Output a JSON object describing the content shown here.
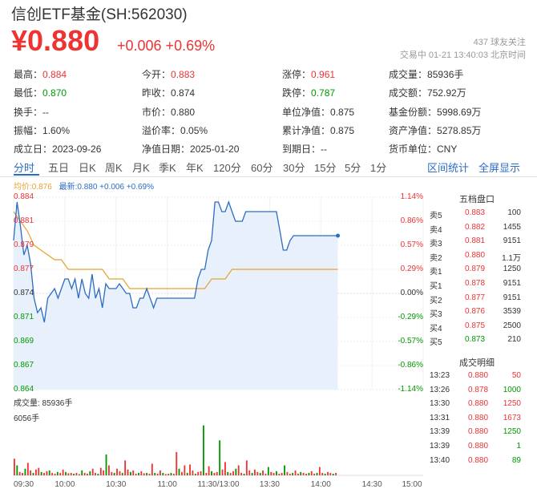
{
  "header": {
    "title": "信创ETF基金(SH:562030)",
    "price": "¥0.880",
    "change": "+0.006 +0.69%",
    "followers": "437 球友关注",
    "status": "交易中 01-21 13:40:03 北京时间"
  },
  "quote": [
    [
      {
        "label": "最高：",
        "value": "0.884",
        "color": "red"
      },
      {
        "label": "今开：",
        "value": "0.883",
        "color": "red"
      },
      {
        "label": "涨停：",
        "value": "0.961",
        "color": "red"
      },
      {
        "label": "成交量：",
        "value": "85936手",
        "color": "dark"
      }
    ],
    [
      {
        "label": "最低：",
        "value": "0.870",
        "color": "green"
      },
      {
        "label": "昨收：",
        "value": "0.874",
        "color": "dark"
      },
      {
        "label": "跌停：",
        "value": "0.787",
        "color": "green"
      },
      {
        "label": "成交额：",
        "value": "752.92万",
        "color": "dark"
      }
    ],
    [
      {
        "label": "换手：",
        "value": "--",
        "color": "dark"
      },
      {
        "label": "市价：",
        "value": "0.880",
        "color": "dark"
      },
      {
        "label": "单位净值：",
        "value": "0.875",
        "color": "dark"
      },
      {
        "label": "基金份额：",
        "value": "5998.69万",
        "color": "dark"
      }
    ],
    [
      {
        "label": "振幅：",
        "value": "1.60%",
        "color": "dark"
      },
      {
        "label": "溢价率：",
        "value": "0.05%",
        "color": "dark"
      },
      {
        "label": "累计净值：",
        "value": "0.875",
        "color": "dark"
      },
      {
        "label": "资产净值：",
        "value": "5278.85万",
        "color": "dark"
      }
    ],
    [
      {
        "label": "成立日：",
        "value": "2023-09-26",
        "color": "dark"
      },
      {
        "label": "净值日期：",
        "value": "2025-01-20",
        "color": "dark"
      },
      {
        "label": "到期日：",
        "value": "--",
        "color": "dark"
      },
      {
        "label": "货币单位：",
        "value": "CNY",
        "color": "dark"
      }
    ]
  ],
  "tabs": [
    "分时",
    "五日",
    "日K",
    "周K",
    "月K",
    "季K",
    "年K",
    "120分",
    "60分",
    "30分",
    "15分",
    "5分",
    "1分"
  ],
  "tab_right": [
    "区间统计",
    "全屏显示"
  ],
  "legend": {
    "avg": "均价:0.876",
    "latest": "最新:0.880 +0.006 +0.69%"
  },
  "colors": {
    "up": "#e33",
    "down": "#090",
    "price_line": "#2b6cc4",
    "avg_line": "#e8a030",
    "accent": "#2b6cc4"
  },
  "chart_data": {
    "type": "line",
    "title": "",
    "yticks": [
      "0.884",
      "0.881",
      "0.879",
      "0.877",
      "0.874",
      "0.871",
      "0.869",
      "0.867",
      "0.864"
    ],
    "pct_ticks": [
      "1.14%",
      "0.86%",
      "0.57%",
      "0.29%",
      "0.00%",
      "-0.29%",
      "-0.57%",
      "-0.86%",
      "-1.14%"
    ],
    "ylim": [
      0.864,
      0.884
    ],
    "prev_close": 0.874,
    "xticks": [
      "09:30",
      "10:00",
      "10:30",
      "11:00",
      "11:30/13:00",
      "13:30",
      "14:00",
      "14:30",
      "15:00"
    ],
    "xlim": [
      0,
      240
    ],
    "series": [
      {
        "x": [
          0,
          2,
          4,
          6,
          8,
          10,
          12,
          14,
          16,
          18,
          20,
          22,
          24,
          26,
          28,
          30,
          32,
          34,
          36,
          38,
          40,
          42,
          44,
          46,
          48,
          50,
          52,
          54,
          56,
          58,
          60,
          62,
          64,
          66,
          68,
          70,
          72,
          74,
          76,
          78,
          80,
          82,
          84,
          86,
          88,
          90,
          92,
          94,
          96,
          98,
          100,
          102,
          104,
          106,
          108,
          110,
          112,
          114,
          116,
          118,
          120,
          122,
          124,
          126,
          128,
          130,
          132,
          134,
          136,
          138,
          140,
          142,
          144,
          146,
          148,
          150,
          152,
          154,
          156,
          158,
          160,
          162,
          164,
          166,
          168,
          170,
          172,
          174,
          176,
          178,
          180,
          182,
          184,
          186,
          188,
          190
        ],
        "values": [
          0.8795,
          0.8835,
          0.881,
          0.878,
          0.879,
          0.877,
          0.8735,
          0.872,
          0.8725,
          0.871,
          0.8735,
          0.874,
          0.8745,
          0.8735,
          0.8745,
          0.8755,
          0.8755,
          0.8745,
          0.8755,
          0.8735,
          0.8755,
          0.874,
          0.8735,
          0.876,
          0.8735,
          0.8745,
          0.8725,
          0.875,
          0.8745,
          0.8745,
          0.8745,
          0.875,
          0.8745,
          0.874,
          0.874,
          0.8725,
          0.8725,
          0.8735,
          0.8735,
          0.8745,
          0.8735,
          0.8725,
          0.8735,
          0.8735,
          0.8735,
          0.8735,
          0.8735,
          0.8735,
          0.8735,
          0.8735,
          0.8735,
          0.8735,
          0.8735,
          0.8735,
          0.8755,
          0.8765,
          0.8765,
          0.8785,
          0.8795,
          0.8835,
          0.8835,
          0.8825,
          0.8825,
          0.8835,
          0.8825,
          0.8815,
          0.8815,
          0.8815,
          0.8825,
          0.8825,
          0.8825,
          0.8825,
          0.8825,
          0.8825,
          0.8825,
          0.8825,
          0.8825,
          0.8825,
          0.8805,
          0.8785,
          0.8785,
          0.8795,
          0.88,
          0.88,
          0.88,
          0.88,
          0.88,
          0.88,
          0.88,
          0.88,
          0.88,
          0.88,
          0.88,
          0.88,
          0.88,
          0.88
        ]
      },
      {
        "x": [
          0,
          4,
          8,
          12,
          16,
          20,
          24,
          28,
          32,
          36,
          40,
          44,
          48,
          52,
          56,
          60,
          64,
          68,
          72,
          76,
          80,
          84,
          88,
          92,
          96,
          100,
          104,
          108,
          112,
          116,
          120,
          124,
          128,
          132,
          136,
          140,
          150,
          160,
          170,
          180,
          190
        ],
        "values": [
          0.8825,
          0.8815,
          0.8805,
          0.879,
          0.8785,
          0.878,
          0.8775,
          0.8775,
          0.8765,
          0.8765,
          0.8765,
          0.8765,
          0.8765,
          0.8765,
          0.8755,
          0.8755,
          0.8755,
          0.8745,
          0.8745,
          0.8745,
          0.8745,
          0.8745,
          0.8745,
          0.8745,
          0.8745,
          0.8745,
          0.8745,
          0.8745,
          0.8745,
          0.8755,
          0.8755,
          0.8755,
          0.8765,
          0.8765,
          0.8765,
          0.8765,
          0.8765,
          0.8765,
          0.8765,
          0.8765,
          0.8765
        ]
      }
    ],
    "volume": {
      "legend": "成交量: 85936手",
      "max_label": "6056手",
      "ymax": 6056,
      "bars": [
        2000,
        1200,
        400,
        300,
        800,
        1500,
        600,
        300,
        700,
        900,
        400,
        300,
        500,
        600,
        300,
        200,
        400,
        300,
        700,
        400,
        250,
        300,
        200,
        300,
        150,
        600,
        300,
        200,
        500,
        800,
        300,
        200,
        900,
        600,
        2500,
        1200,
        400,
        300,
        800,
        500,
        300,
        1800,
        700,
        400,
        600,
        200,
        300,
        500,
        250,
        300,
        200,
        1400,
        300,
        200,
        600,
        300,
        150,
        200,
        300,
        200,
        2800,
        800,
        400,
        1200,
        300,
        1300,
        600,
        200,
        400,
        500,
        6000,
        300,
        1100,
        500,
        300,
        400,
        4200,
        700,
        1600,
        400,
        300,
        500,
        800,
        1200,
        300,
        200,
        1800,
        600,
        300,
        700,
        400,
        300,
        600,
        200,
        1000,
        400,
        300,
        500,
        200,
        300,
        1200,
        400,
        200,
        300,
        600,
        200,
        400,
        300,
        200,
        300,
        500,
        200,
        300,
        1000,
        300,
        200,
        400,
        300,
        200,
        300
      ]
    }
  },
  "order_book": {
    "title": "五档盘口",
    "rows": [
      {
        "label": "卖5",
        "price": "0.883",
        "vol": "100",
        "color": "red"
      },
      {
        "label": "卖4",
        "price": "0.882",
        "vol": "1455",
        "color": "red"
      },
      {
        "label": "卖3",
        "price": "0.881",
        "vol": "9151",
        "color": "red"
      },
      {
        "label": "卖2",
        "price": "0.880",
        "vol": "1.1万",
        "color": "red"
      },
      {
        "label": "卖1",
        "price": "0.879",
        "vol": "1250",
        "color": "red"
      },
      {
        "label": "买1",
        "price": "0.878",
        "vol": "9151",
        "color": "red"
      },
      {
        "label": "买2",
        "price": "0.877",
        "vol": "9151",
        "color": "red"
      },
      {
        "label": "买3",
        "price": "0.876",
        "vol": "3539",
        "color": "red"
      },
      {
        "label": "买4",
        "price": "0.875",
        "vol": "2500",
        "color": "red"
      },
      {
        "label": "买5",
        "price": "0.873",
        "vol": "210",
        "color": "green"
      }
    ],
    "trades_title": "成交明细",
    "trades": [
      {
        "time": "13:23",
        "price": "0.880",
        "vol": "50",
        "color": "red"
      },
      {
        "time": "13:26",
        "price": "0.878",
        "vol": "1000",
        "color": "green"
      },
      {
        "time": "13:30",
        "price": "0.880",
        "vol": "1250",
        "color": "red"
      },
      {
        "time": "13:31",
        "price": "0.880",
        "vol": "1673",
        "color": "red"
      },
      {
        "time": "13:39",
        "price": "0.880",
        "vol": "1250",
        "color": "green"
      },
      {
        "time": "13:39",
        "price": "0.880",
        "vol": "1",
        "color": "green"
      },
      {
        "time": "13:40",
        "price": "0.880",
        "vol": "89",
        "color": "green"
      }
    ]
  }
}
